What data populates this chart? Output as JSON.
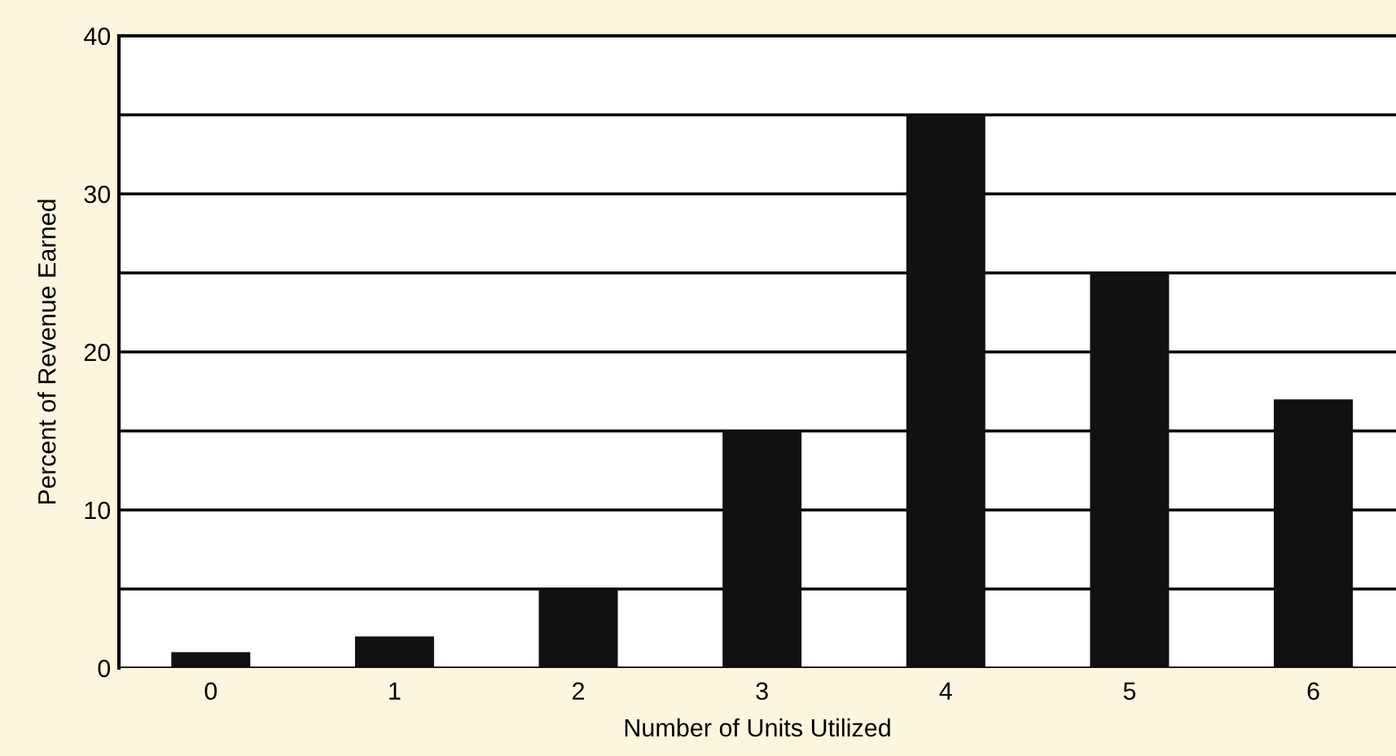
{
  "chart_data": {
    "type": "bar",
    "xlabel": "Number of Units Utilized",
    "ylabel": "Percent of Revenue Earned",
    "categories": [
      "0",
      "1",
      "2",
      "3",
      "4",
      "5",
      "6"
    ],
    "values": [
      1,
      2,
      5,
      15,
      35,
      25,
      17
    ],
    "color": "#111111",
    "ylim": [
      0,
      40
    ],
    "yticks": [
      0,
      {
        "value": 5,
        "label": null
      },
      10,
      {
        "value": 15,
        "label": null
      },
      20,
      {
        "value": 25,
        "label": null
      },
      30,
      {
        "value": 35,
        "label": null
      },
      40
    ],
    "grid": "y"
  }
}
